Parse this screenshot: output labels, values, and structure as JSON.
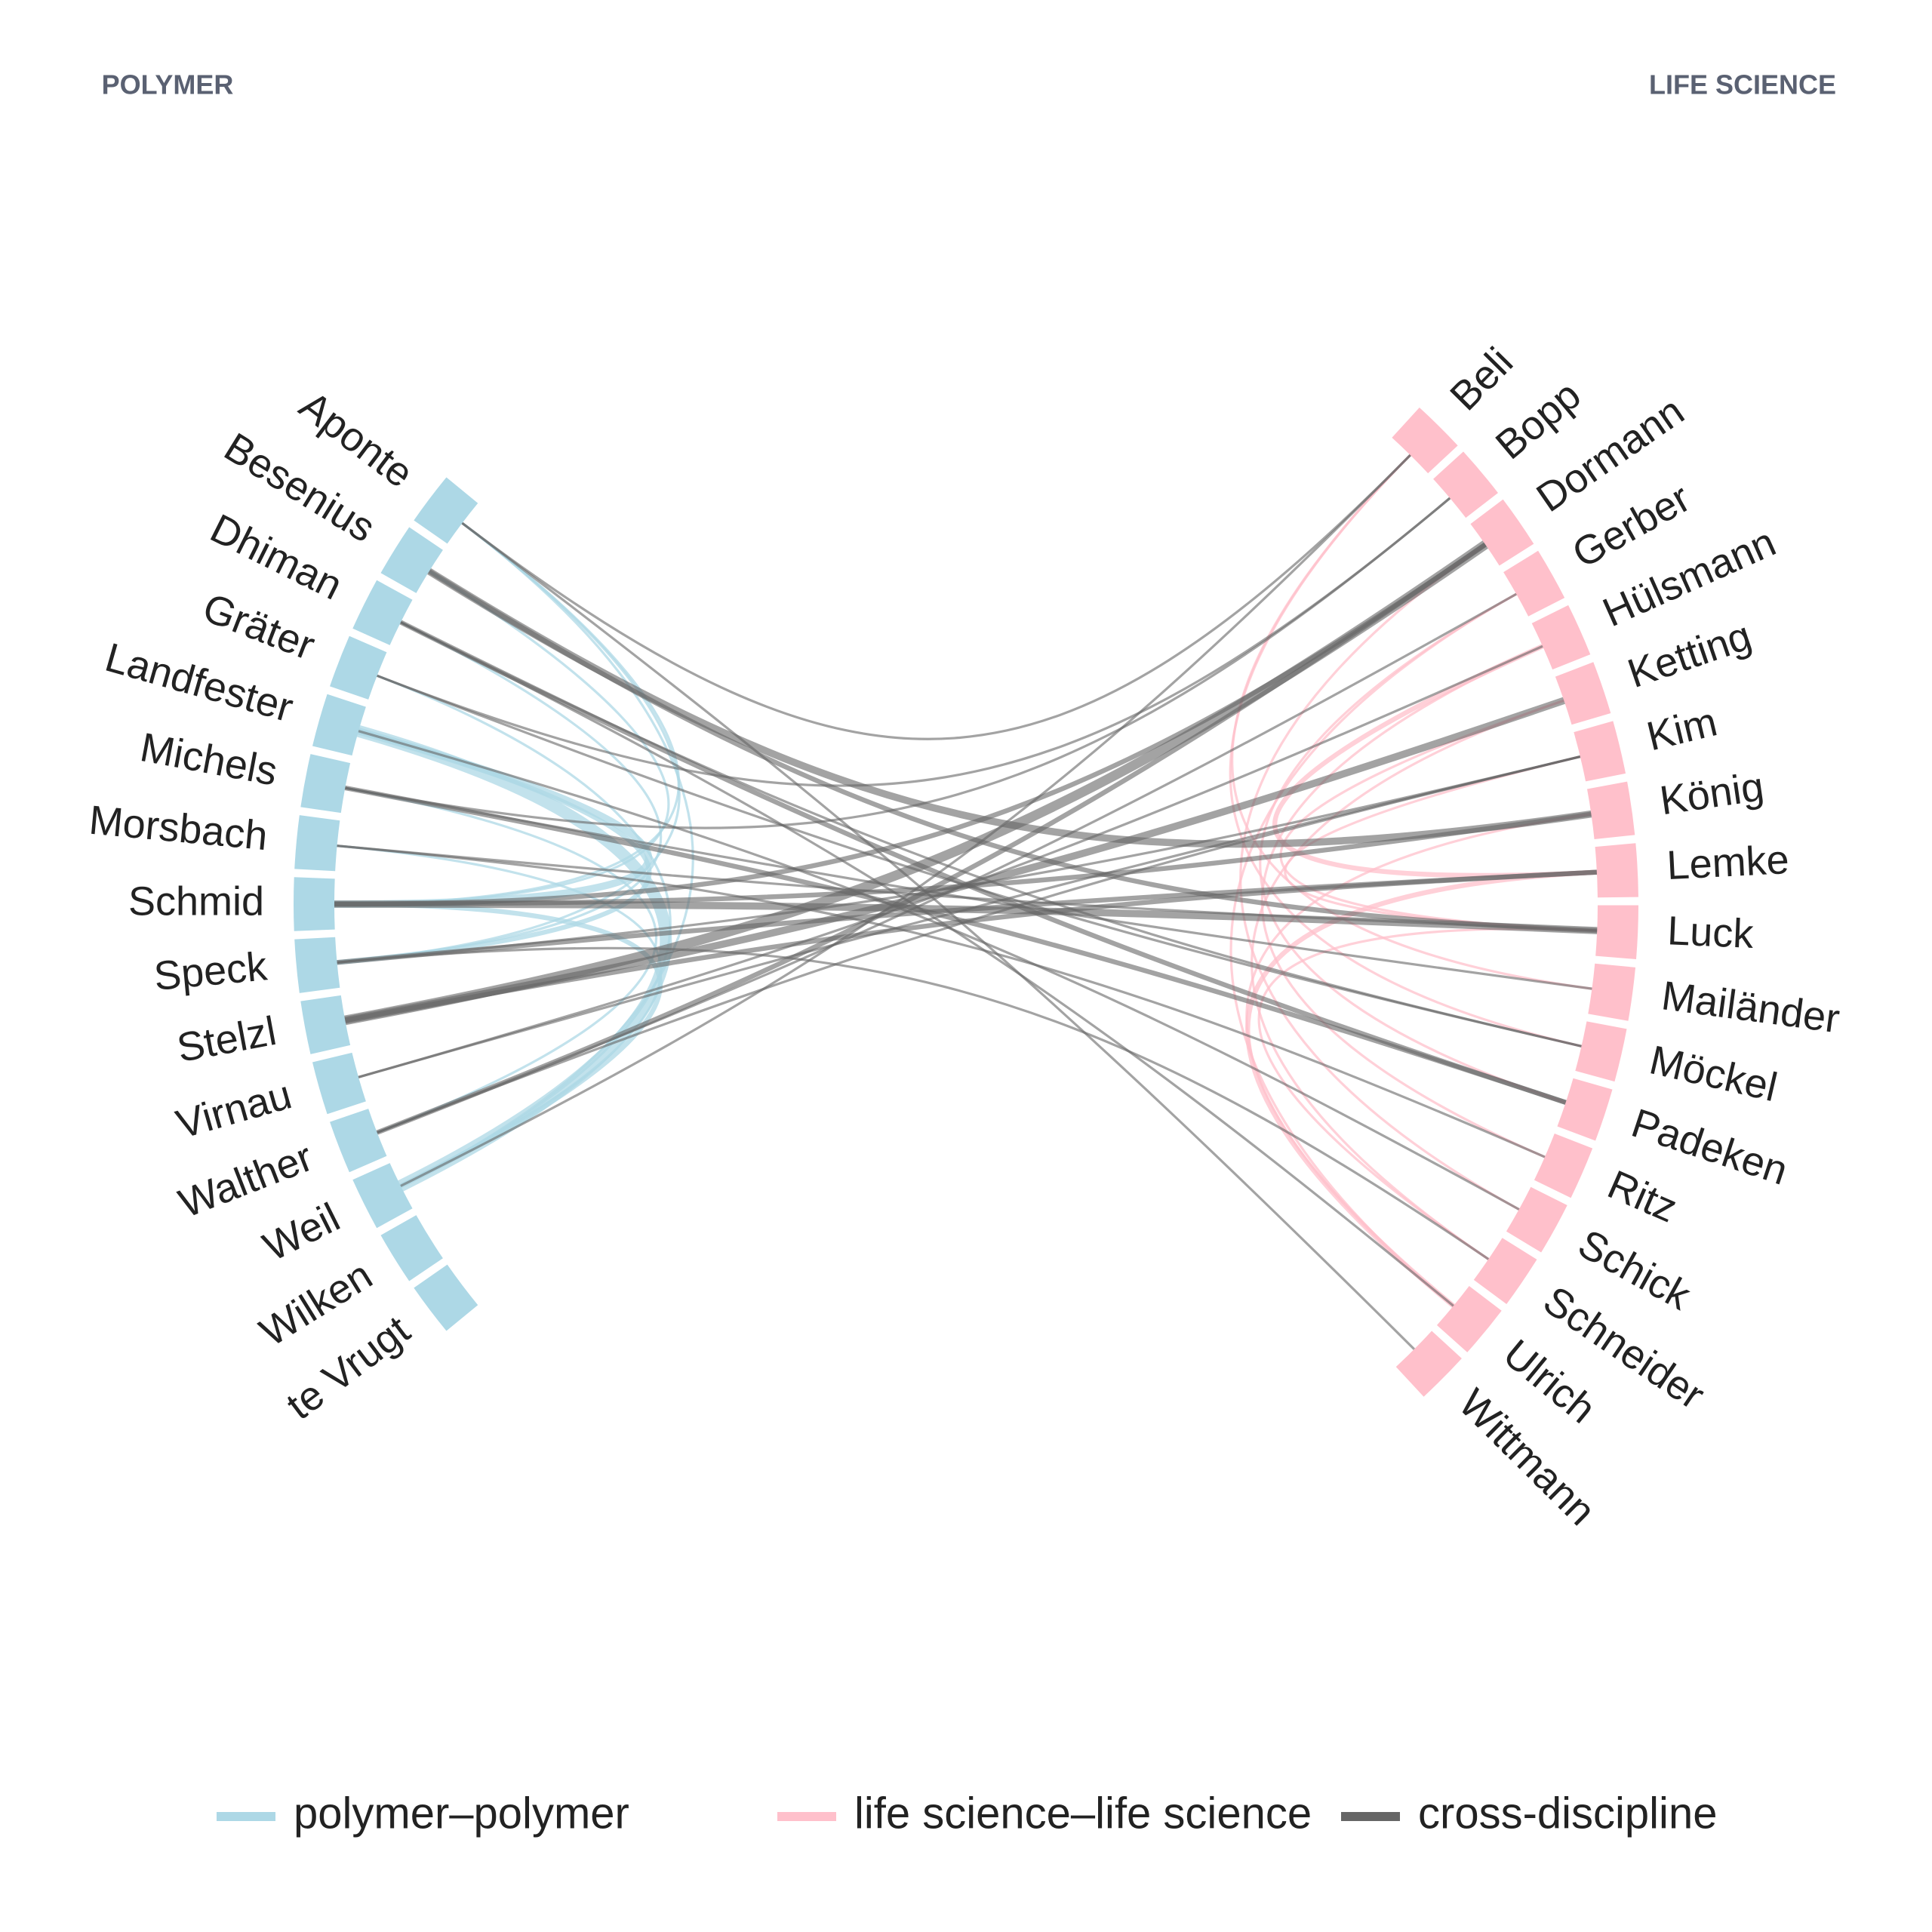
{
  "groups": [
    {
      "title": "POLYMER",
      "color": "#add8e6",
      "nodes": [
        "Aponte",
        "Besenius",
        "Dhiman",
        "Gräter",
        "Landfester",
        "Michels",
        "Morsbach",
        "Schmid",
        "Speck",
        "Stelzl",
        "Virnau",
        "Walther",
        "Weil",
        "Wilken",
        "te Vrugt"
      ]
    },
    {
      "title": "LIFE SCIENCE",
      "color": "#ffc0cb",
      "nodes": [
        "Beli",
        "Bopp",
        "Dormann",
        "Gerber",
        "Hülsmann",
        "Ketting",
        "Kim",
        "König",
        "Lemke",
        "Luck",
        "Mailänder",
        "Möckel",
        "Padeken",
        "Ritz",
        "Schick",
        "Schneider",
        "Ulrich",
        "Wittmann"
      ]
    }
  ],
  "legend": [
    {
      "label": "polymer–polymer",
      "color": "#add8e6"
    },
    {
      "label": "life science–life science",
      "color": "#ffc0cb"
    },
    {
      "label": "cross-discipline",
      "color": "#666666"
    }
  ],
  "links": [
    {
      "from": [
        0,
        4
      ],
      "to": [
        0,
        12
      ],
      "weight": 5
    },
    {
      "from": [
        0,
        4
      ],
      "to": [
        0,
        7
      ],
      "weight": 3
    },
    {
      "from": [
        0,
        0
      ],
      "to": [
        0,
        7
      ],
      "weight": 1
    },
    {
      "from": [
        0,
        0
      ],
      "to": [
        0,
        8
      ],
      "weight": 1
    },
    {
      "from": [
        0,
        3
      ],
      "to": [
        0,
        12
      ],
      "weight": 1
    },
    {
      "from": [
        0,
        4
      ],
      "to": [
        0,
        8
      ],
      "weight": 2
    },
    {
      "from": [
        0,
        1
      ],
      "to": [
        0,
        7
      ],
      "weight": 1
    },
    {
      "from": [
        0,
        7
      ],
      "to": [
        0,
        12
      ],
      "weight": 2
    },
    {
      "from": [
        0,
        5
      ],
      "to": [
        0,
        11
      ],
      "weight": 1
    },
    {
      "from": [
        0,
        6
      ],
      "to": [
        0,
        12
      ],
      "weight": 1
    },
    {
      "from": [
        0,
        2
      ],
      "to": [
        0,
        8
      ],
      "weight": 1
    },
    {
      "from": [
        0,
        0
      ],
      "to": [
        0,
        12
      ],
      "weight": 1
    },
    {
      "from": [
        1,
        4
      ],
      "to": [
        1,
        8
      ],
      "weight": 2
    },
    {
      "from": [
        1,
        3
      ],
      "to": [
        1,
        16
      ],
      "weight": 1
    },
    {
      "from": [
        1,
        0
      ],
      "to": [
        1,
        10
      ],
      "weight": 1
    },
    {
      "from": [
        1,
        0
      ],
      "to": [
        1,
        11
      ],
      "weight": 1
    },
    {
      "from": [
        1,
        5
      ],
      "to": [
        1,
        15
      ],
      "weight": 1
    },
    {
      "from": [
        1,
        5
      ],
      "to": [
        1,
        9
      ],
      "weight": 1
    },
    {
      "from": [
        1,
        6
      ],
      "to": [
        1,
        9
      ],
      "weight": 1
    },
    {
      "from": [
        1,
        8
      ],
      "to": [
        1,
        16
      ],
      "weight": 2
    },
    {
      "from": [
        1,
        4
      ],
      "to": [
        1,
        13
      ],
      "weight": 1
    },
    {
      "from": [
        1,
        3
      ],
      "to": [
        1,
        12
      ],
      "weight": 1
    },
    {
      "from": [
        1,
        7
      ],
      "to": [
        1,
        16
      ],
      "weight": 1
    },
    {
      "from": [
        1,
        2
      ],
      "to": [
        1,
        14
      ],
      "weight": 1
    },
    {
      "from": [
        1,
        9
      ],
      "to": [
        1,
        15
      ],
      "weight": 1
    },
    {
      "from": [
        0,
        9
      ],
      "to": [
        1,
        2
      ],
      "weight": 4
    },
    {
      "from": [
        0,
        9
      ],
      "to": [
        1,
        5
      ],
      "weight": 3
    },
    {
      "from": [
        0,
        7
      ],
      "to": [
        1,
        9
      ],
      "weight": 3
    },
    {
      "from": [
        0,
        7
      ],
      "to": [
        1,
        7
      ],
      "weight": 2
    },
    {
      "from": [
        0,
        1
      ],
      "to": [
        1,
        7
      ],
      "weight": 3
    },
    {
      "from": [
        0,
        1
      ],
      "to": [
        1,
        9
      ],
      "weight": 2
    },
    {
      "from": [
        0,
        11
      ],
      "to": [
        1,
        2
      ],
      "weight": 2
    },
    {
      "from": [
        0,
        11
      ],
      "to": [
        1,
        3
      ],
      "weight": 1
    },
    {
      "from": [
        0,
        2
      ],
      "to": [
        1,
        12
      ],
      "weight": 2
    },
    {
      "from": [
        0,
        2
      ],
      "to": [
        1,
        11
      ],
      "weight": 1
    },
    {
      "from": [
        0,
        3
      ],
      "to": [
        1,
        11
      ],
      "weight": 1
    },
    {
      "from": [
        0,
        5
      ],
      "to": [
        1,
        12
      ],
      "weight": 2
    },
    {
      "from": [
        0,
        5
      ],
      "to": [
        1,
        10
      ],
      "weight": 1
    },
    {
      "from": [
        0,
        8
      ],
      "to": [
        1,
        8
      ],
      "weight": 2
    },
    {
      "from": [
        0,
        8
      ],
      "to": [
        1,
        6
      ],
      "weight": 1
    },
    {
      "from": [
        0,
        6
      ],
      "to": [
        1,
        9
      ],
      "weight": 1
    },
    {
      "from": [
        0,
        10
      ],
      "to": [
        1,
        4
      ],
      "weight": 1
    },
    {
      "from": [
        0,
        10
      ],
      "to": [
        1,
        6
      ],
      "weight": 1
    },
    {
      "from": [
        0,
        0
      ],
      "to": [
        1,
        0
      ],
      "weight": 1
    },
    {
      "from": [
        0,
        0
      ],
      "to": [
        1,
        17
      ],
      "weight": 1
    },
    {
      "from": [
        0,
        3
      ],
      "to": [
        1,
        1
      ],
      "weight": 1
    },
    {
      "from": [
        0,
        12
      ],
      "to": [
        1,
        0
      ],
      "weight": 1
    },
    {
      "from": [
        0,
        4
      ],
      "to": [
        1,
        14
      ],
      "weight": 1
    },
    {
      "from": [
        0,
        6
      ],
      "to": [
        1,
        13
      ],
      "weight": 1
    },
    {
      "from": [
        0,
        9
      ],
      "to": [
        1,
        8
      ],
      "weight": 2
    },
    {
      "from": [
        0,
        11
      ],
      "to": [
        1,
        6
      ],
      "weight": 1
    },
    {
      "from": [
        0,
        7
      ],
      "to": [
        1,
        2
      ],
      "weight": 2
    },
    {
      "from": [
        0,
        5
      ],
      "to": [
        1,
        1
      ],
      "weight": 1
    },
    {
      "from": [
        0,
        2
      ],
      "to": [
        1,
        16
      ],
      "weight": 1
    },
    {
      "from": [
        0,
        8
      ],
      "to": [
        1,
        15
      ],
      "weight": 1
    }
  ]
}
